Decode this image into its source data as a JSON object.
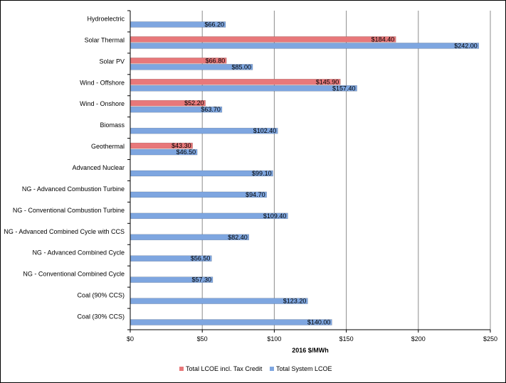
{
  "chart_data": {
    "type": "bar",
    "orientation": "horizontal",
    "xlabel": "2016 $/MWh",
    "xlim": [
      0,
      250
    ],
    "xticks": [
      0,
      50,
      100,
      150,
      200,
      250
    ],
    "xtick_labels": [
      "$0",
      "$50",
      "$100",
      "$150",
      "$200",
      "$250"
    ],
    "grid": true,
    "legend_position": "bottom",
    "categories": [
      "Hydroelectric",
      "Solar Thermal",
      "Solar PV",
      "Wind - Offshore",
      "Wind - Onshore",
      "Biomass",
      "Geothermal",
      "Advanced Nuclear",
      "NG - Advanced Combustion Turbine",
      "NG - Conventional Combustion Turbine",
      "NG - Advanced Combined Cycle with CCS",
      "NG - Advanced Combined Cycle",
      "NG - Conventional Combined Cycle",
      "Coal (90% CCS)",
      "Coal (30% CCS)"
    ],
    "series": [
      {
        "name": "Total LCOE incl. Tax Credit",
        "color": "#e8787a",
        "values": [
          null,
          184.4,
          66.8,
          145.9,
          52.2,
          null,
          43.3,
          null,
          null,
          null,
          null,
          null,
          null,
          null,
          null
        ],
        "labels": [
          "",
          "$184.40",
          "$66.80",
          "$145.90",
          "$52.20",
          "",
          "$43.30",
          "",
          "",
          "",
          "",
          "",
          "",
          "",
          ""
        ]
      },
      {
        "name": "Total System LCOE",
        "color": "#7ea6e0",
        "values": [
          66.2,
          242.0,
          85.0,
          157.4,
          63.7,
          102.4,
          46.5,
          99.1,
          94.7,
          109.4,
          82.4,
          56.5,
          57.3,
          123.2,
          140.0
        ],
        "labels": [
          "$66.20",
          "$242.00",
          "$85.00",
          "$157.40",
          "$63.70",
          "$102.40",
          "$46.50",
          "$99.10",
          "$94.70",
          "$109.40",
          "$82.40",
          "$56.50",
          "$57.30",
          "$123.20",
          "$140.00"
        ]
      }
    ]
  }
}
